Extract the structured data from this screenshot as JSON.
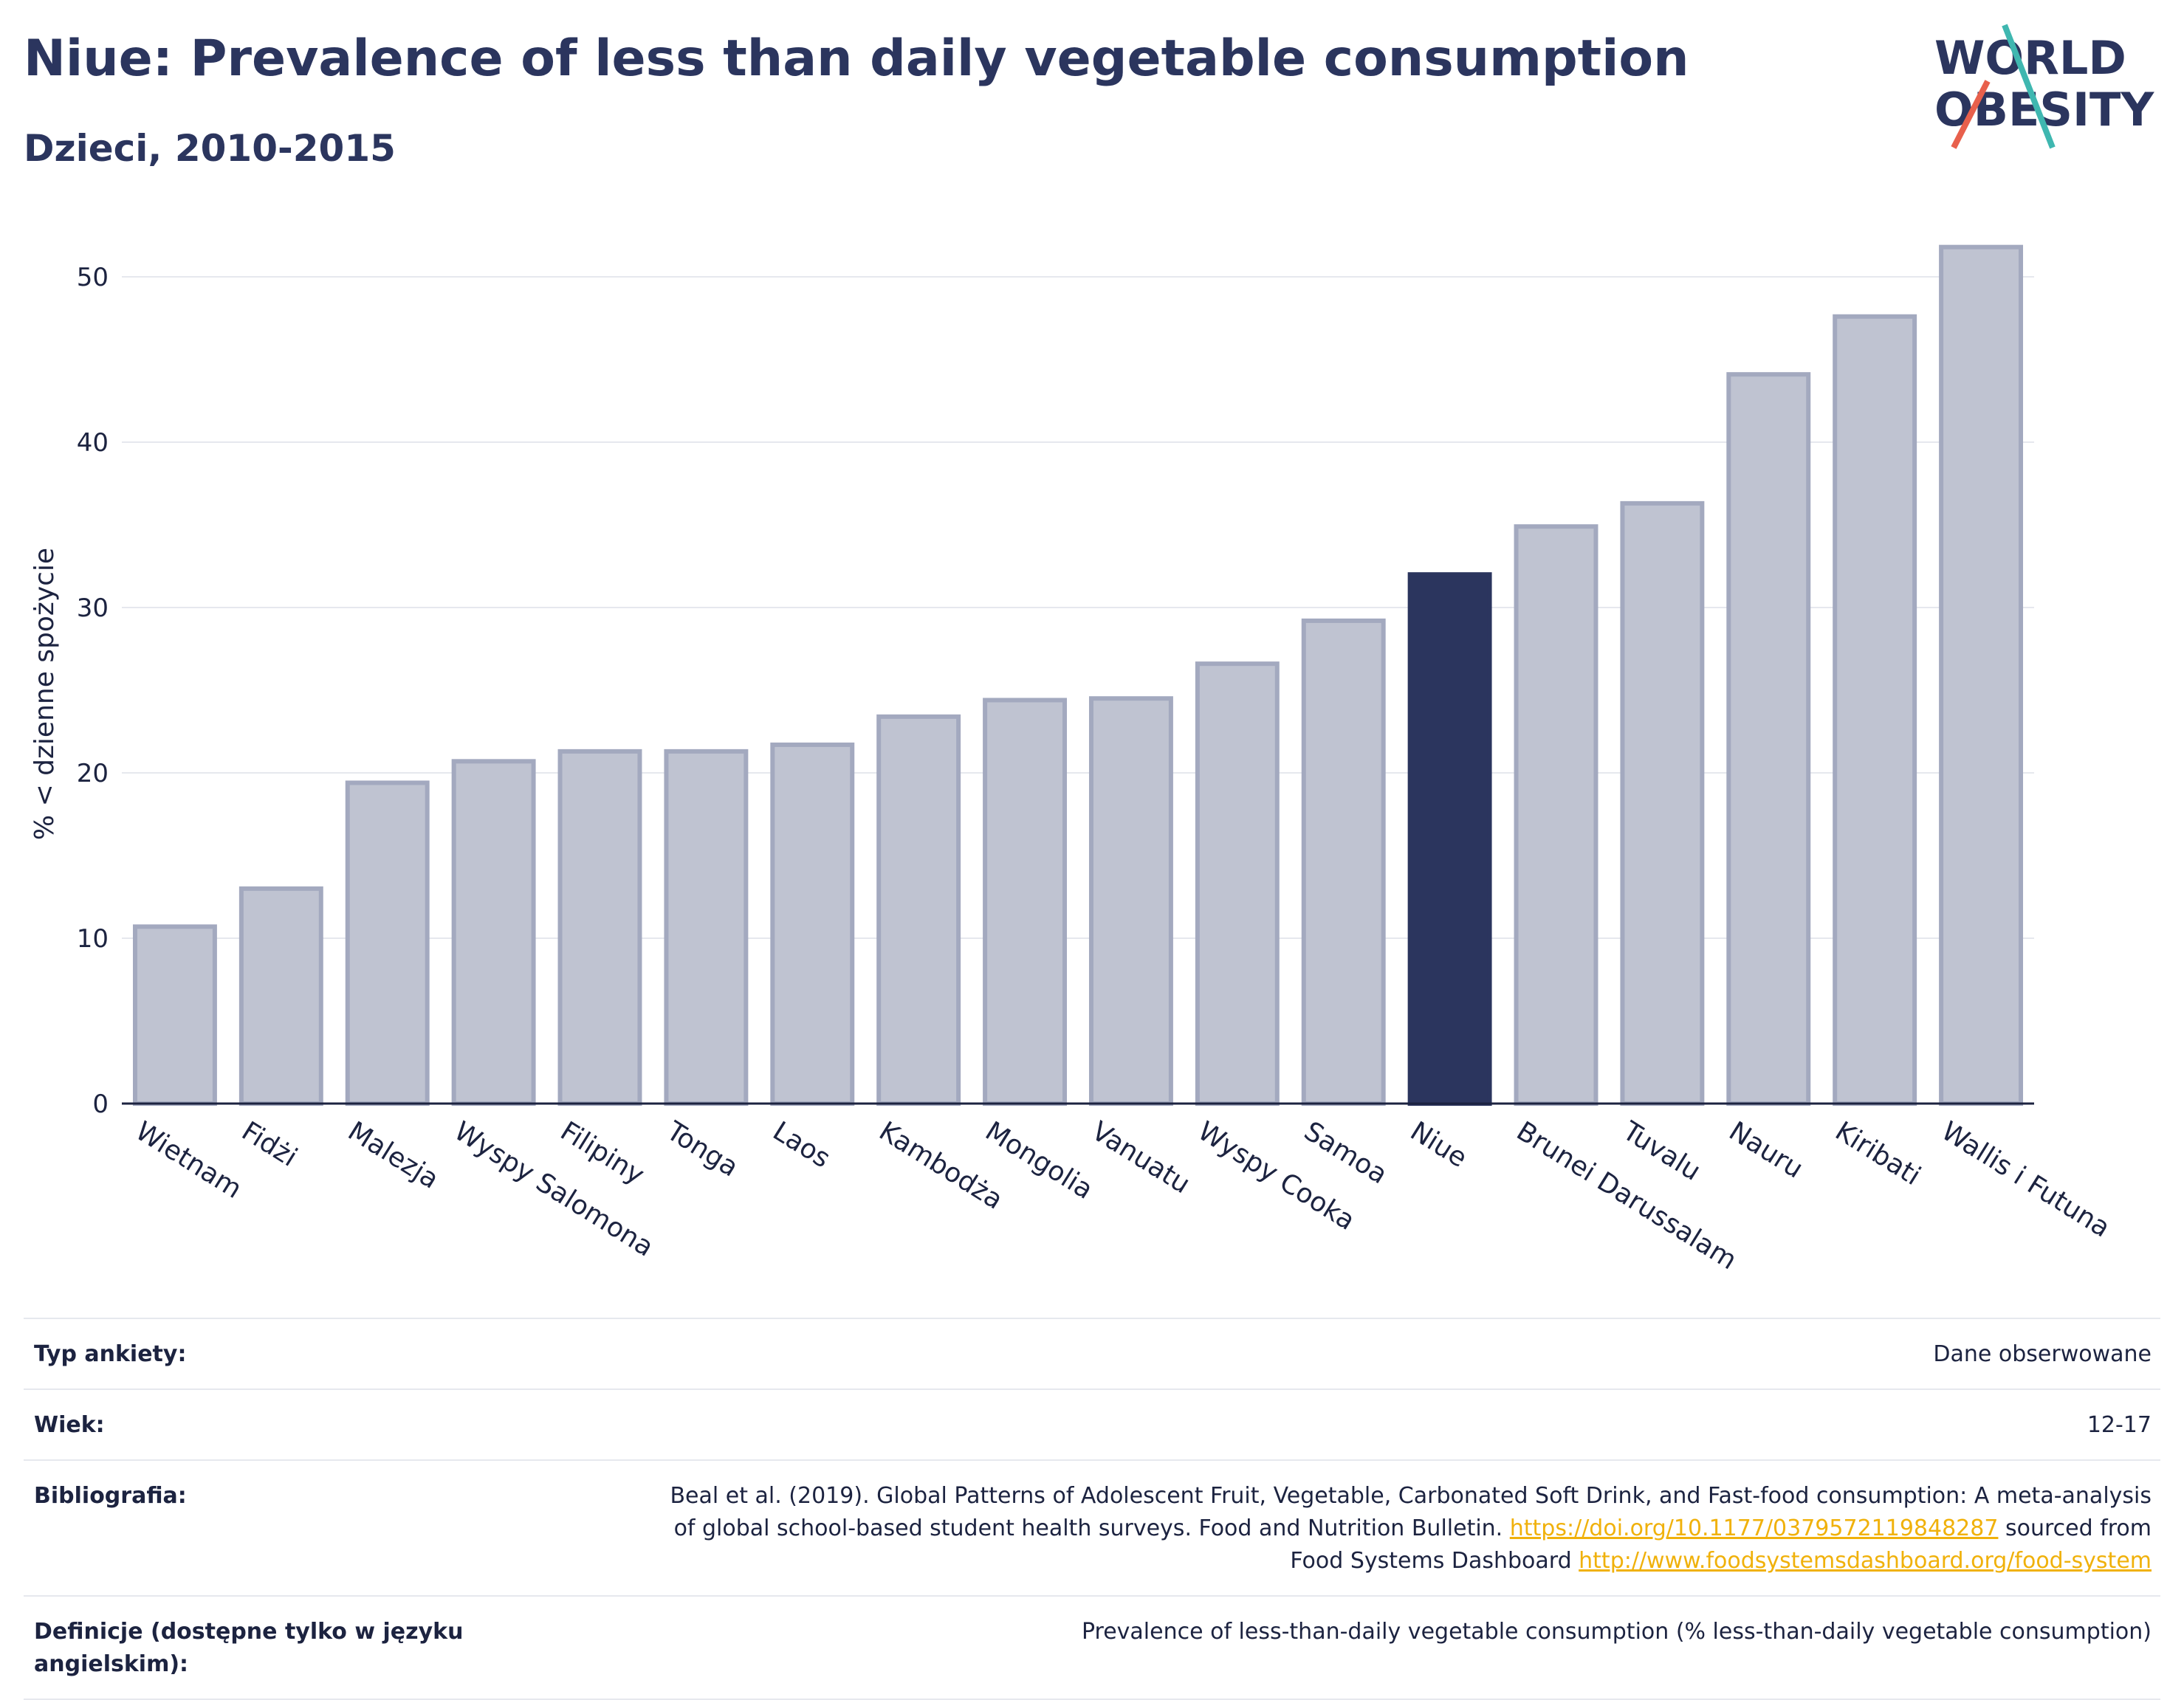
{
  "header": {
    "title": "Niue: Prevalence of less than daily vegetable consumption",
    "subtitle": "Dzieci, 2010-2015"
  },
  "logo": {
    "line1": "WORLD",
    "line2": "OBESITY"
  },
  "colors": {
    "highlight": "#2b355e",
    "bar": "#bfc3d1",
    "bar_border": "#a3a9bf",
    "grid": "#e6e8ee"
  },
  "chart_data": {
    "type": "bar",
    "title": "Niue: Prevalence of less than daily vegetable consumption",
    "subtitle": "Dzieci, 2010-2015",
    "xlabel": "",
    "ylabel": "% < dzienne spożycie",
    "ylim": [
      0,
      54
    ],
    "yticks": [
      0,
      10,
      20,
      30,
      40,
      50
    ],
    "grid": true,
    "highlight": "Niue",
    "categories": [
      "Wietnam",
      "Fidżi",
      "Malezja",
      "Wyspy Salomona",
      "Filipiny",
      "Tonga",
      "Laos",
      "Kambodża",
      "Mongolia",
      "Vanuatu",
      "Wyspy Cooka",
      "Samoa",
      "Niue",
      "Brunei Darussalam",
      "Tuvalu",
      "Nauru",
      "Kiribati",
      "Wallis i Futuna"
    ],
    "values": [
      10.7,
      13.0,
      19.4,
      20.7,
      21.3,
      21.3,
      21.7,
      23.4,
      24.4,
      24.5,
      26.6,
      29.2,
      32.0,
      34.9,
      36.3,
      44.1,
      47.6,
      51.8
    ]
  },
  "info": [
    {
      "key": "Typ ankiety:",
      "value": "Dane obserwowane"
    },
    {
      "key": "Wiek:",
      "value": "12-17"
    },
    {
      "key": "Bibliografia:",
      "line1": "Beal et al. (2019). Global Patterns of Adolescent Fruit, Vegetable, Carbonated Soft Drink, and Fast-food consumption: A meta-analysis",
      "line2_text": "of global school-based student health surveys. Food and Nutrition Bulletin. ",
      "link1": "https://doi.org/10.1177/0379572119848287",
      "line2_suffix": " sourced from",
      "line3_text": "Food Systems Dashboard ",
      "link2": "http://www.foodsystemsdashboard.org/food-system"
    },
    {
      "key": "Definicje (dostępne tylko w języku angielskim):",
      "value": "Prevalence of less-than-daily vegetable consumption (% less-than-daily vegetable consumption)"
    }
  ]
}
